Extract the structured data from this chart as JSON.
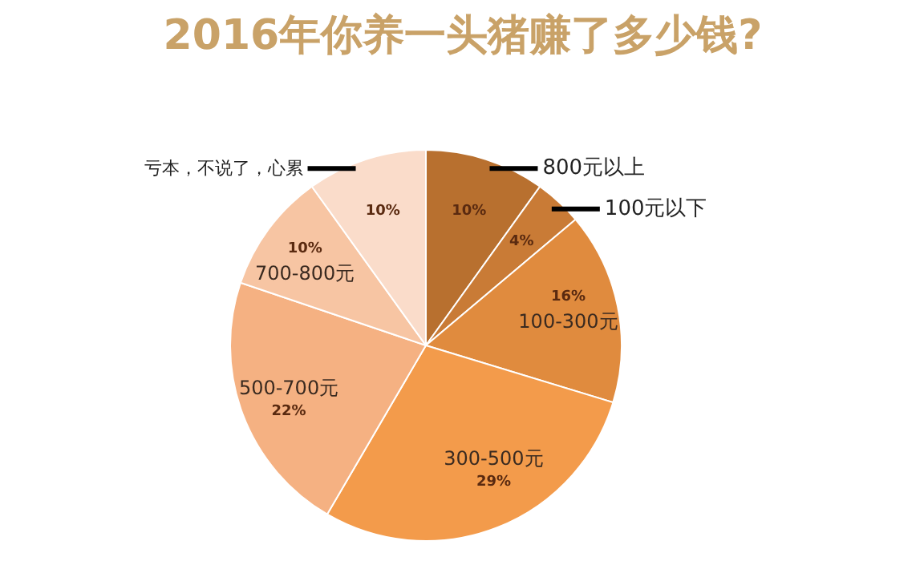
{
  "chart_data": {
    "type": "pie",
    "title": "2016年你养一头猪赚了多少钱?",
    "categories": [
      "800元以上",
      "100元以下",
      "100-300元",
      "300-500元",
      "500-700元",
      "700-800元",
      "亏本，不说了，心累"
    ],
    "values": [
      10,
      4,
      16,
      29,
      22,
      10,
      10
    ],
    "value_labels": [
      "10%",
      "4%",
      "16%",
      "29%",
      "22%",
      "10%",
      "10%"
    ],
    "colors": [
      "#b8702f",
      "#c97b36",
      "#e08b3e",
      "#f39b4b",
      "#f5b182",
      "#f7c5a3",
      "#fadcca"
    ]
  }
}
